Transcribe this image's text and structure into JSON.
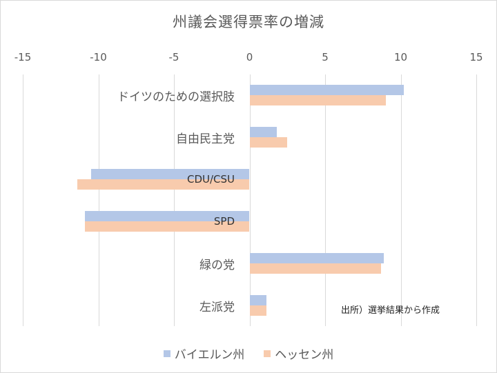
{
  "chart_data": {
    "type": "bar",
    "orientation": "horizontal",
    "title": "州議会選得票率の増減",
    "categories": [
      "ドイツのための選択肢",
      "自由民主党",
      "CDU/CSU",
      "SPD",
      "緑の党",
      "左派党"
    ],
    "series": [
      {
        "name": "バイエルン州",
        "color": "#b4c7e7",
        "values": [
          10.2,
          1.8,
          -10.5,
          -10.9,
          8.9,
          1.1
        ]
      },
      {
        "name": "ヘッセン州",
        "color": "#f8cbad",
        "values": [
          9.0,
          2.5,
          -11.4,
          -10.9,
          8.7,
          1.1
        ]
      }
    ],
    "xlim": [
      -15,
      15
    ],
    "xticks": [
      "-15",
      "-10",
      "-5",
      "0",
      "5",
      "10",
      "15"
    ],
    "xlabel": "",
    "ylabel": "",
    "grid": true,
    "legend_position": "bottom",
    "annotation": "出所）選挙結果から作成"
  }
}
